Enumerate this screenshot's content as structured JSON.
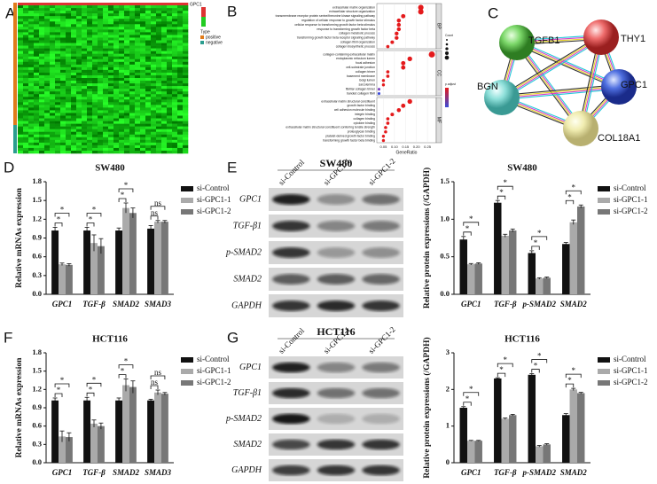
{
  "panels": [
    "A",
    "B",
    "C",
    "D",
    "E",
    "F",
    "G"
  ],
  "heatmap": {
    "gene": "GPC1",
    "legend_title": "Type",
    "groups": [
      "positive",
      "negative"
    ]
  },
  "network": {
    "nodes": [
      "TGFB1",
      "THY1",
      "GPC1",
      "BGN",
      "COL18A1"
    ]
  },
  "blots": [
    {
      "title": "SW480",
      "lanes": [
        "si-Control",
        "si-GPC1-1",
        "si-GPC1-2"
      ],
      "rows": [
        "GPC1",
        "TGF-β1",
        "p-SMAD2",
        "SMAD2",
        "GAPDH"
      ]
    },
    {
      "title": "HCT116",
      "lanes": [
        "si-Control",
        "si-GPC1-1",
        "si-GPC1-2"
      ],
      "rows": [
        "GPC1",
        "TGF-β1",
        "p-SMAD2",
        "SMAD2",
        "GAPDH"
      ]
    }
  ],
  "chart_data": [
    {
      "type": "dot",
      "xlabel": "GeneRatio",
      "xlim": [
        0.02,
        0.29
      ],
      "xticks": [
        0.05,
        {
          "value": 0.1,
          "label": "0.10"
        },
        0.15,
        {
          "value": 0.2,
          "label": "0.20"
        },
        0.25
      ],
      "legend": {
        "size_title": "Count",
        "color_title": "p.adjust"
      },
      "groups": [
        {
          "name": "BP",
          "terms": [
            "extracellular matrix organization",
            "extracellular structure organization",
            "transmembrane receptor protein serine/threonine kinase signaling pathway",
            "regulation of cellular response to growth factor stimulus",
            "cellular response to transforming growth factor beta stimulus",
            "response to transforming growth factor beta",
            "collagen metabolic process",
            "transforming growth factor beta receptor signaling pathway",
            "collagen fibril organization",
            "collagen biosynthetic process"
          ],
          "values": [
            0.22,
            0.22,
            0.14,
            0.12,
            0.12,
            0.12,
            0.11,
            0.11,
            0.09,
            0.07
          ],
          "colors": [
            "#e41a1c",
            "#e41a1c",
            "#e41a1c",
            "#e41a1c",
            "#e41a1c",
            "#e41a1c",
            "#e41a1c",
            "#e41a1c",
            "#e41a1c",
            "#e41a1c"
          ]
        },
        {
          "name": "CC",
          "terms": [
            "collagen-containing extracellular matrix",
            "endoplasmic reticulum lumen",
            "focal adhesion",
            "cell-substrate junction",
            "collagen trimer",
            "basement membrane",
            "Golgi lumen",
            "sarcolemma",
            "fibrillar collagen trimer",
            "banded collagen fibril"
          ],
          "values": [
            0.27,
            0.17,
            0.14,
            0.14,
            0.07,
            0.07,
            0.05,
            0.05,
            0.03,
            0.03
          ],
          "colors": [
            "#e41a1c",
            "#e41a1c",
            "#e41a1c",
            "#e41a1c",
            "#e41a1c",
            "#e41a1c",
            "#e41a1c",
            "#e41a1c",
            "#7b3fbf",
            "#3b4bd8"
          ]
        },
        {
          "name": "MF",
          "terms": [
            "extracellular matrix structural constituent",
            "growth factor binding",
            "cell adhesion molecule binding",
            "integrin binding",
            "collagen binding",
            "cytokine binding",
            "extracellular matrix structural constituent conferring tensile strength",
            "proteoglycan binding",
            "platelet-derived growth factor binding",
            "transforming growth factor beta binding"
          ],
          "values": [
            0.17,
            0.14,
            0.12,
            0.09,
            0.07,
            0.07,
            0.06,
            0.06,
            0.05,
            0.05
          ],
          "colors": [
            "#e41a1c",
            "#e41a1c",
            "#e41a1c",
            "#e41a1c",
            "#e41a1c",
            "#e41a1c",
            "#e41a1c",
            "#e41a1c",
            "#e41a1c",
            "#e41a1c"
          ]
        }
      ]
    },
    {
      "type": "bar",
      "title": "SW480",
      "ylabel": "Relative mRNAs expression",
      "categories": [
        "GPC1",
        "TGF-β",
        "SMAD2",
        "SMAD3"
      ],
      "ylim": [
        0,
        1.8
      ],
      "yticks": [
        {
          "value": 0,
          "label": "0.0"
        },
        0.3,
        0.6,
        0.9,
        1.2,
        1.5,
        1.8
      ],
      "series": [
        {
          "name": "si-Control",
          "color": "#111111",
          "values": [
            1.02,
            1.02,
            1.02,
            1.05
          ],
          "errors": [
            0.05,
            0.05,
            0.04,
            0.05
          ]
        },
        {
          "name": "si-GPC1-1",
          "color": "#aaaaaa",
          "values": [
            0.48,
            0.82,
            1.38,
            1.16
          ],
          "errors": [
            0.02,
            0.13,
            0.08,
            0.02
          ]
        },
        {
          "name": "si-GPC1-2",
          "color": "#777777",
          "values": [
            0.47,
            0.77,
            1.3,
            1.16
          ],
          "errors": [
            0.02,
            0.12,
            0.08,
            0.02
          ]
        }
      ],
      "annotations": [
        {
          "category": 0,
          "pair": [
            0,
            1
          ],
          "label": "*"
        },
        {
          "category": 0,
          "pair": [
            0,
            2
          ],
          "label": "*"
        },
        {
          "category": 1,
          "pair": [
            0,
            1
          ],
          "label": "*"
        },
        {
          "category": 1,
          "pair": [
            0,
            2
          ],
          "label": "*"
        },
        {
          "category": 2,
          "pair": [
            0,
            1
          ],
          "label": "*"
        },
        {
          "category": 2,
          "pair": [
            0,
            2
          ],
          "label": "*"
        },
        {
          "category": 3,
          "pair": [
            0,
            1
          ],
          "label": "ns"
        },
        {
          "category": 3,
          "pair": [
            0,
            2
          ],
          "label": "ns"
        }
      ]
    },
    {
      "type": "bar",
      "title": "SW480",
      "ylabel": "Relative protein expressions (/GAPDH)",
      "categories": [
        "GPC1",
        "TGF-β",
        "p-SMAD2",
        "SMAD2"
      ],
      "ylim": [
        0,
        1.5
      ],
      "yticks": [
        {
          "value": 0,
          "label": "0.0"
        },
        0.5,
        {
          "value": 1,
          "label": "1.0"
        },
        1.5
      ],
      "series": [
        {
          "name": "si-Control",
          "color": "#111111",
          "values": [
            0.73,
            1.22,
            0.55,
            0.67
          ],
          "errors": [
            0.04,
            0.03,
            0.03,
            0.02
          ]
        },
        {
          "name": "si-GPC1-1",
          "color": "#aaaaaa",
          "values": [
            0.4,
            0.78,
            0.21,
            0.96
          ],
          "errors": [
            0.01,
            0.02,
            0.01,
            0.03
          ]
        },
        {
          "name": "si-GPC1-2",
          "color": "#777777",
          "values": [
            0.41,
            0.85,
            0.22,
            1.17
          ],
          "errors": [
            0.01,
            0.02,
            0.01,
            0.02
          ]
        }
      ],
      "annotations": [
        {
          "category": 0,
          "pair": [
            0,
            1
          ],
          "label": "*"
        },
        {
          "category": 0,
          "pair": [
            0,
            2
          ],
          "label": "*"
        },
        {
          "category": 1,
          "pair": [
            0,
            1
          ],
          "label": "*"
        },
        {
          "category": 1,
          "pair": [
            0,
            2
          ],
          "label": "*"
        },
        {
          "category": 2,
          "pair": [
            0,
            1
          ],
          "label": "*"
        },
        {
          "category": 2,
          "pair": [
            0,
            2
          ],
          "label": "*"
        },
        {
          "category": 3,
          "pair": [
            0,
            1
          ],
          "label": "*"
        },
        {
          "category": 3,
          "pair": [
            0,
            2
          ],
          "label": "*"
        }
      ]
    },
    {
      "type": "bar",
      "title": "HCT116",
      "ylabel": "Relative mRNAs expression",
      "categories": [
        "GPC1",
        "TGF-β",
        "SMAD2",
        "SMAD3"
      ],
      "ylim": [
        0,
        1.8
      ],
      "yticks": [
        {
          "value": 0,
          "label": "0.0"
        },
        0.3,
        0.6,
        0.9,
        1.2,
        1.5,
        1.8
      ],
      "series": [
        {
          "name": "si-Control",
          "color": "#111111",
          "values": [
            1.02,
            1.02,
            1.02,
            1.02
          ],
          "errors": [
            0.04,
            0.05,
            0.04,
            0.02
          ]
        },
        {
          "name": "si-GPC1-1",
          "color": "#aaaaaa",
          "values": [
            0.43,
            0.64,
            1.27,
            1.15
          ],
          "errors": [
            0.09,
            0.06,
            0.1,
            0.04
          ]
        },
        {
          "name": "si-GPC1-2",
          "color": "#777777",
          "values": [
            0.42,
            0.6,
            1.24,
            1.13
          ],
          "errors": [
            0.07,
            0.05,
            0.1,
            0.02
          ]
        }
      ],
      "annotations": [
        {
          "category": 0,
          "pair": [
            0,
            1
          ],
          "label": "*"
        },
        {
          "category": 0,
          "pair": [
            0,
            2
          ],
          "label": "*"
        },
        {
          "category": 1,
          "pair": [
            0,
            1
          ],
          "label": "*"
        },
        {
          "category": 1,
          "pair": [
            0,
            2
          ],
          "label": "*"
        },
        {
          "category": 2,
          "pair": [
            0,
            1
          ],
          "label": "*"
        },
        {
          "category": 2,
          "pair": [
            0,
            2
          ],
          "label": "*"
        },
        {
          "category": 3,
          "pair": [
            0,
            1
          ],
          "label": "ns"
        },
        {
          "category": 3,
          "pair": [
            0,
            2
          ],
          "label": "ns"
        }
      ]
    },
    {
      "type": "bar",
      "title": "HCT116",
      "ylabel": "Relative protein expressions (/GAPDH)",
      "categories": [
        "GPC1",
        "TGF-β",
        "p-SMAD2",
        "SMAD2"
      ],
      "ylim": [
        0,
        3
      ],
      "yticks": [
        0,
        1,
        2,
        3
      ],
      "series": [
        {
          "name": "si-Control",
          "color": "#111111",
          "values": [
            1.5,
            2.3,
            2.4,
            1.3
          ],
          "errors": [
            0.03,
            0.02,
            0.03,
            0.04
          ]
        },
        {
          "name": "si-GPC1-1",
          "color": "#aaaaaa",
          "values": [
            0.6,
            1.2,
            0.45,
            2.0
          ],
          "errors": [
            0.01,
            0.02,
            0.02,
            0.03
          ]
        },
        {
          "name": "si-GPC1-2",
          "color": "#777777",
          "values": [
            0.6,
            1.3,
            0.5,
            1.9
          ],
          "errors": [
            0.01,
            0.02,
            0.02,
            0.02
          ]
        }
      ],
      "annotations": [
        {
          "category": 0,
          "pair": [
            0,
            1
          ],
          "label": "*"
        },
        {
          "category": 0,
          "pair": [
            0,
            2
          ],
          "label": "*"
        },
        {
          "category": 1,
          "pair": [
            0,
            1
          ],
          "label": "*"
        },
        {
          "category": 1,
          "pair": [
            0,
            2
          ],
          "label": "*"
        },
        {
          "category": 2,
          "pair": [
            0,
            1
          ],
          "label": "*"
        },
        {
          "category": 2,
          "pair": [
            0,
            2
          ],
          "label": "*"
        },
        {
          "category": 3,
          "pair": [
            0,
            1
          ],
          "label": "*"
        },
        {
          "category": 3,
          "pair": [
            0,
            2
          ],
          "label": "*"
        }
      ]
    }
  ]
}
